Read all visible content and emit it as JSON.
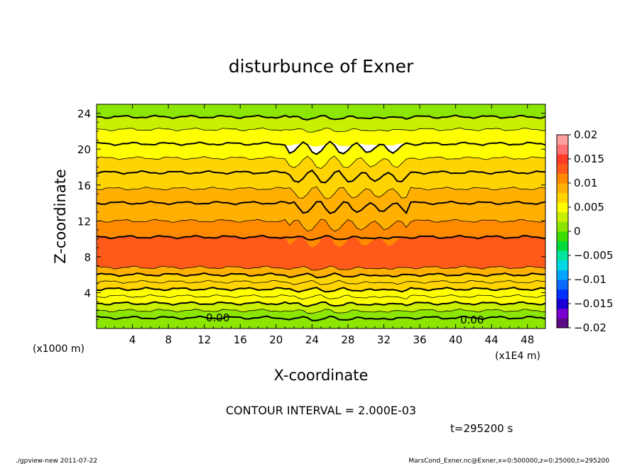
{
  "chart_data": {
    "type": "heatmap",
    "title": "disturbunce of Exner",
    "xlabel": "X-coordinate",
    "ylabel": "Z-coordinate",
    "x_unit_note": "(x1E4 m)",
    "y_unit_note": "(x1000 m)",
    "xlim": [
      0,
      50
    ],
    "ylim": [
      0,
      25
    ],
    "x_ticks": [
      "4",
      "8",
      "12",
      "16",
      "20",
      "24",
      "28",
      "32",
      "36",
      "40",
      "44",
      "48"
    ],
    "y_ticks": [
      "4",
      "8",
      "12",
      "16",
      "20",
      "24"
    ],
    "contour_interval_text": "CONTOUR INTERVAL = 2.000E-03",
    "contour_labels": [
      "0.00",
      "0.00"
    ],
    "time_text": "t=295200 s",
    "colorbar": {
      "range": [
        -0.02,
        0.02
      ],
      "tick_labels": [
        "0.02",
        "0.015",
        "0.01",
        "0.005",
        "0",
        "−0.005",
        "−0.01",
        "−0.015",
        "−0.02"
      ],
      "colors": [
        "#5a0a82",
        "#7a00d0",
        "#1a00d6",
        "#0030ff",
        "#0a6cff",
        "#00a6ff",
        "#00d8e6",
        "#00e6a0",
        "#00dc3c",
        "#3cdc00",
        "#8ce600",
        "#c8f000",
        "#ffff00",
        "#ffd400",
        "#ffb000",
        "#ff8a00",
        "#ff5a1a",
        "#ff3c2a",
        "#ff7070",
        "#ffa0a0"
      ]
    },
    "bands": [
      {
        "z": [
          0,
          1.2
        ],
        "level": 0.001
      },
      {
        "z": [
          1.2,
          2.0
        ],
        "level": 0.002
      },
      {
        "z": [
          2.0,
          2.8
        ],
        "level": 0.003
      },
      {
        "z": [
          2.8,
          3.6
        ],
        "level": 0.004
      },
      {
        "z": [
          3.6,
          4.4
        ],
        "level": 0.005
      },
      {
        "z": [
          4.4,
          5.2
        ],
        "level": 0.006
      },
      {
        "z": [
          5.2,
          6.0
        ],
        "level": 0.007
      },
      {
        "z": [
          6.0,
          6.8
        ],
        "level": 0.009
      },
      {
        "z": [
          6.8,
          10.2
        ],
        "level": 0.012
      },
      {
        "z": [
          10.2,
          12.0
        ],
        "level": 0.01
      },
      {
        "z": [
          12.0,
          14.0
        ],
        "level": 0.009
      },
      {
        "z": [
          14.0,
          15.6
        ],
        "level": 0.008
      },
      {
        "z": [
          15.6,
          17.4
        ],
        "level": 0.007
      },
      {
        "z": [
          17.4,
          19.0
        ],
        "level": 0.006
      },
      {
        "z": [
          19.0,
          20.6
        ],
        "level": 0.005
      },
      {
        "z": [
          20.6,
          22.2
        ],
        "level": 0.004
      },
      {
        "z": [
          22.2,
          23.6
        ],
        "level": 0.003
      },
      {
        "z": [
          23.6,
          25.0
        ],
        "level": 0.002
      }
    ]
  },
  "footer": {
    "left": "./gpview-new   2011-07-22",
    "right": "MarsCond_Exner.nc@Exner,x=0:500000,z=0:25000,t=295200"
  }
}
